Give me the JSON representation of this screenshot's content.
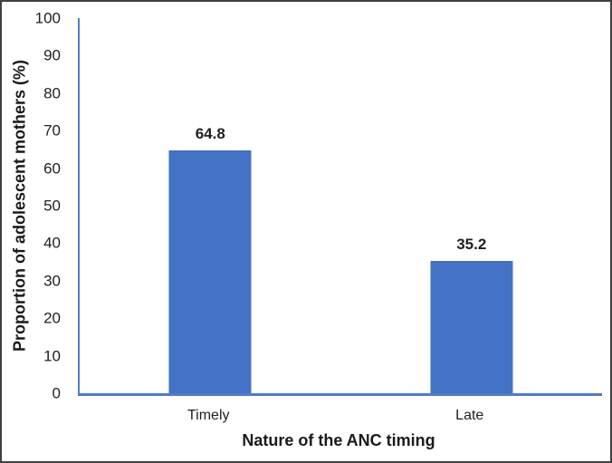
{
  "chart_data": {
    "type": "bar",
    "title": "",
    "categories": [
      "Timely",
      "Late"
    ],
    "values": [
      64.8,
      35.2
    ],
    "data_labels": [
      "64.8",
      "35.2"
    ],
    "xlabel": "Nature of the ANC timing",
    "ylabel": "Proportion of adolescent mothers (%)",
    "ylim": [
      0,
      100
    ],
    "ytick_step": 10,
    "ytick_labels": [
      "0",
      "10",
      "20",
      "30",
      "40",
      "50",
      "60",
      "70",
      "80",
      "90",
      "100"
    ],
    "grid": false,
    "legend_position": "none",
    "bar_color": "#4472C4",
    "axis_color": "#4E7DC5",
    "text_color": "#1F1F1F",
    "frame_color": "#404040",
    "background": "#FFFFFF"
  }
}
